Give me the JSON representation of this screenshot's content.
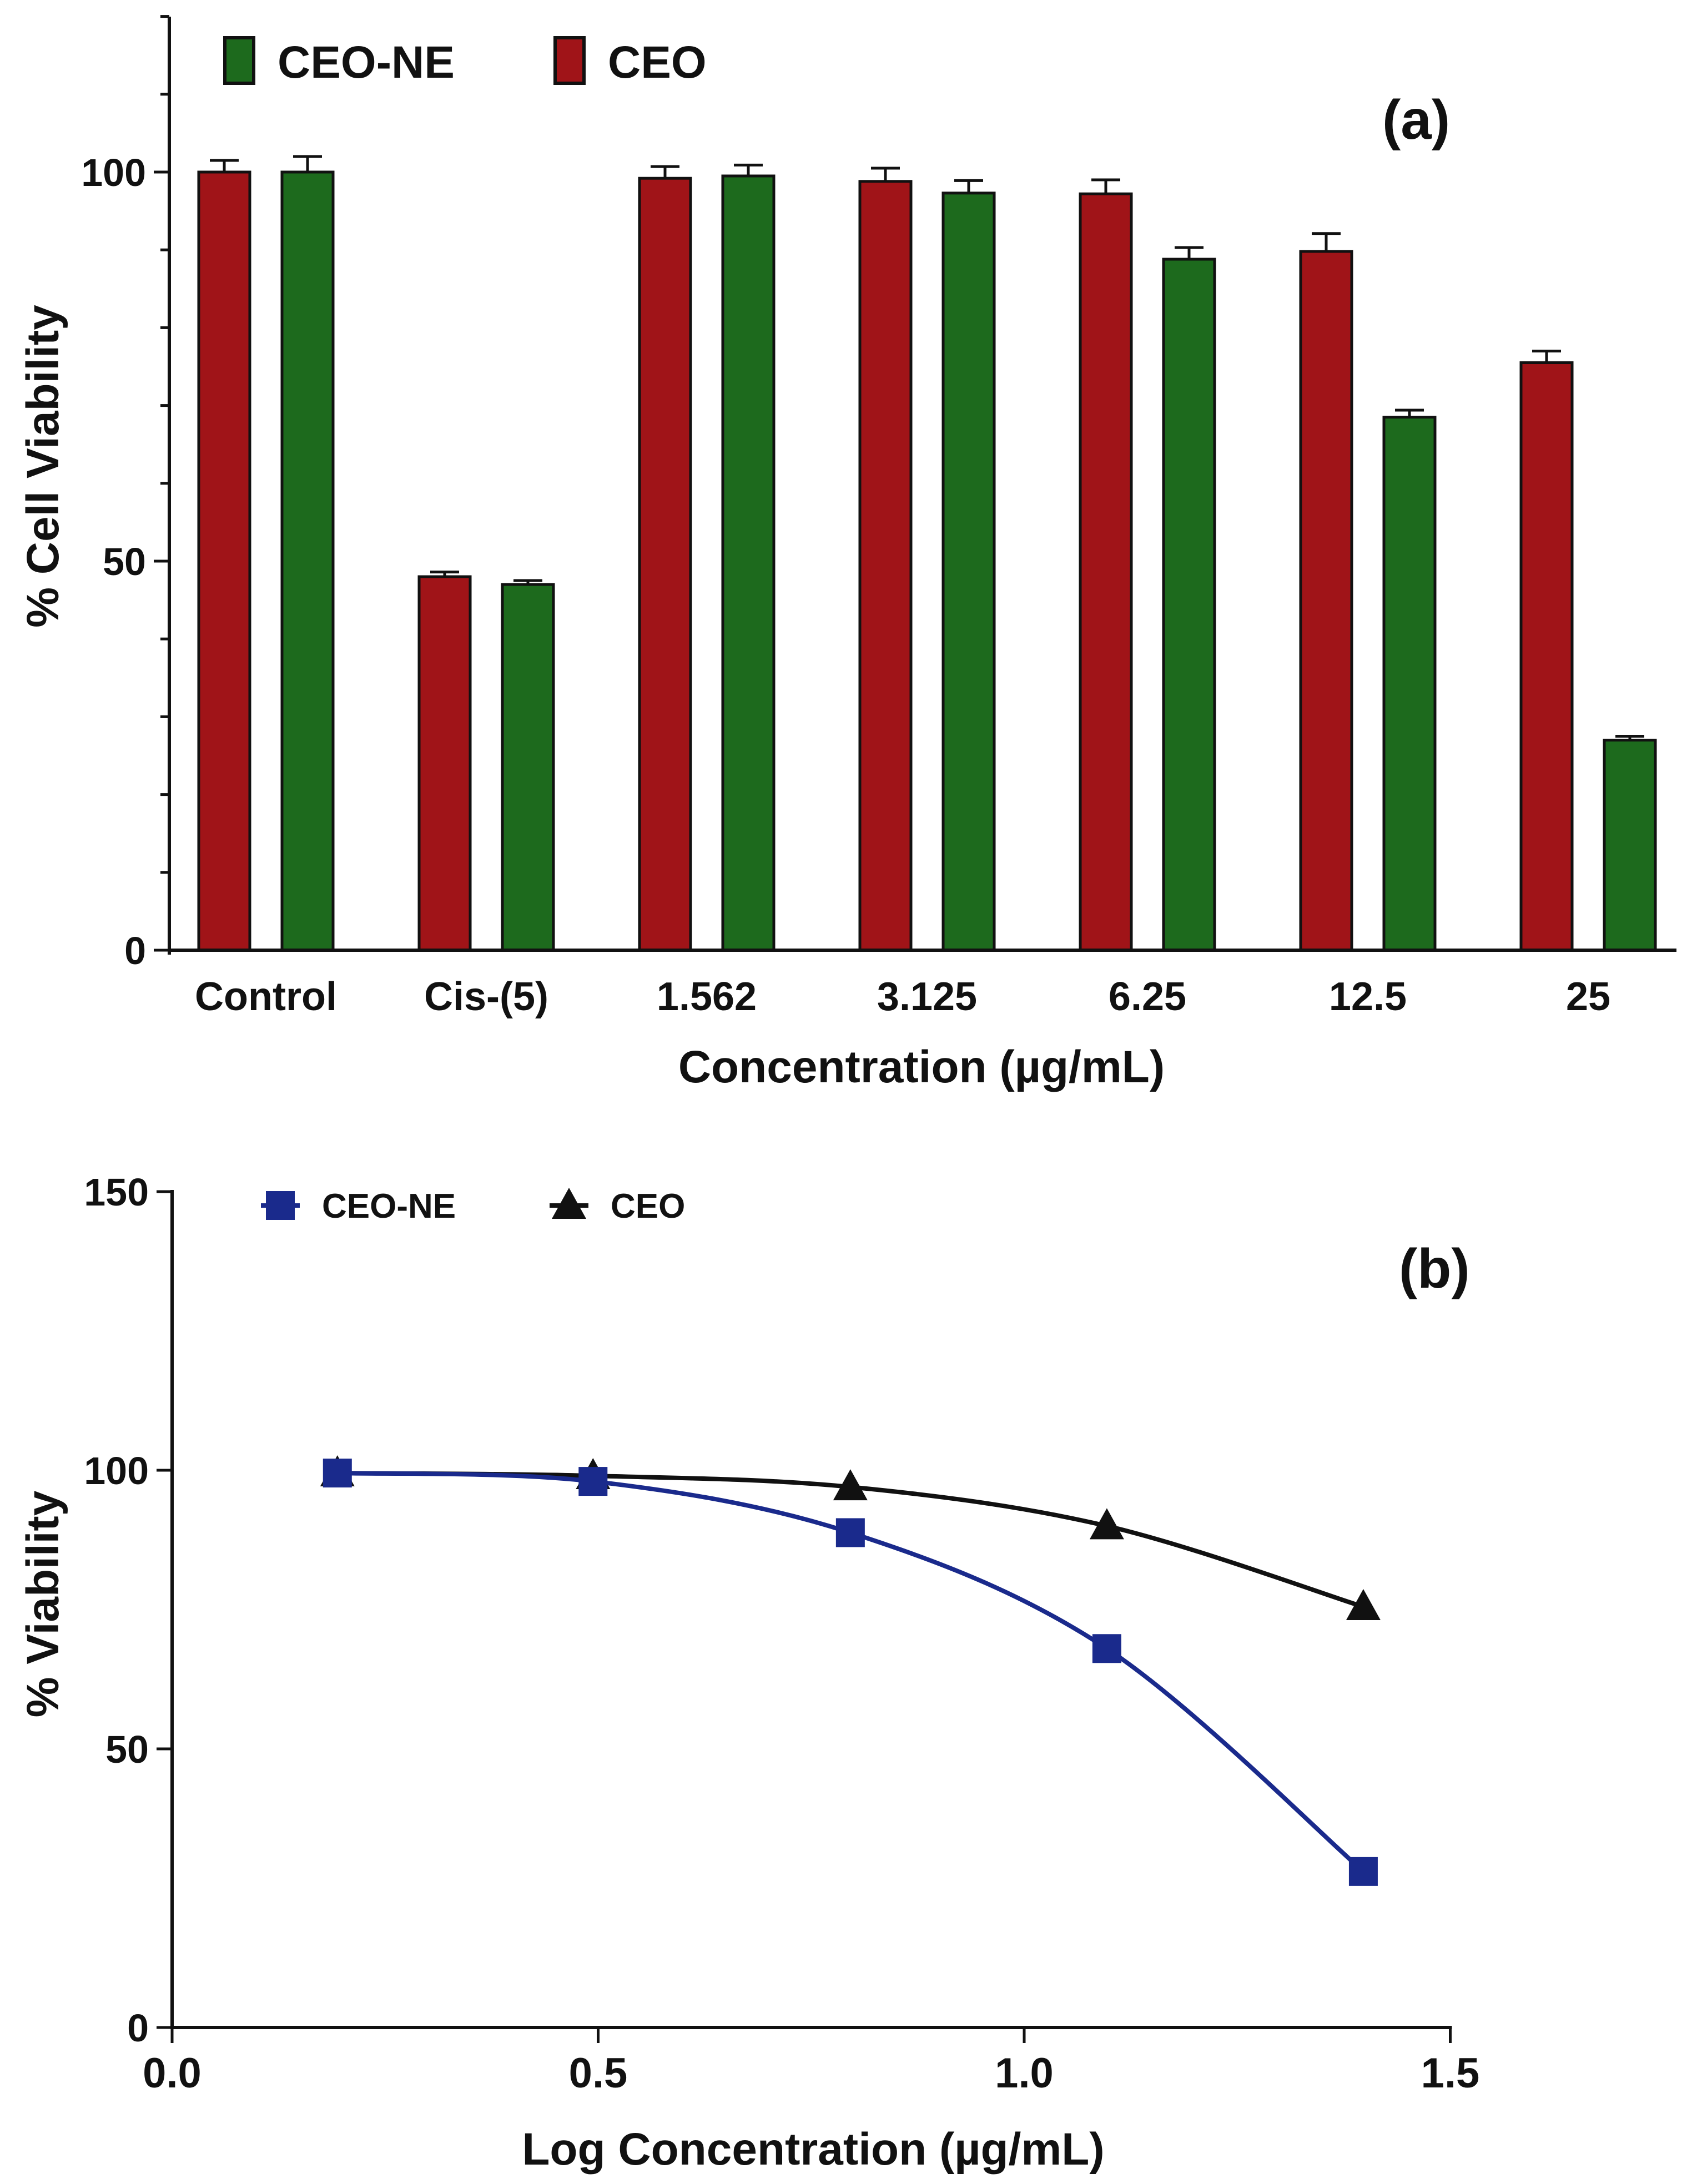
{
  "chart_data": [
    {
      "type": "bar",
      "panel_label": "(a)",
      "xlabel": "Concentration (µg/mL)",
      "ylabel": "% Cell Viability",
      "ylim": [
        0,
        120
      ],
      "yticks": [
        0,
        50,
        100
      ],
      "yticks_labeled": [
        "0",
        "50",
        "100"
      ],
      "grid": false,
      "legend_position": "top-left",
      "categories": [
        "Control",
        "Cis-(5)",
        "1.562",
        "3.125",
        "6.25",
        "12.5",
        "25"
      ],
      "series": [
        {
          "name": "CEO",
          "color": "#a01418",
          "values": [
            100,
            48,
            99.2,
            98.8,
            97.2,
            89.8,
            75.5
          ],
          "errors": [
            1.5,
            0.6,
            1.5,
            1.7,
            1.8,
            2.3,
            1.5
          ]
        },
        {
          "name": "CEO-NE",
          "color": "#1d6a1d",
          "values": [
            100,
            47,
            99.5,
            97.3,
            88.8,
            68.5,
            27
          ],
          "errors": [
            2.0,
            0.5,
            1.4,
            1.6,
            1.5,
            0.9,
            0.5
          ]
        }
      ],
      "legend_order": [
        "CEO-NE",
        "CEO"
      ]
    },
    {
      "type": "line",
      "panel_label": "(b)",
      "xlabel": "Log Concentration (µg/mL)",
      "ylabel": "% Viability",
      "xlim": [
        0,
        1.5
      ],
      "ylim": [
        0,
        150
      ],
      "xticks": [
        0.0,
        0.5,
        1.0,
        1.5
      ],
      "xtick_labels": [
        "0.0",
        "0.5",
        "1.0",
        "1.5"
      ],
      "yticks": [
        0,
        50,
        100,
        150
      ],
      "ytick_labels": [
        "0",
        "50",
        "100",
        "150"
      ],
      "grid": false,
      "legend_position": "top-left",
      "series": [
        {
          "name": "CEO-NE",
          "color": "#1a2a8c",
          "marker": "square",
          "x": [
            0.194,
            0.494,
            0.796,
            1.097,
            1.398
          ],
          "y": [
            99.5,
            98.0,
            88.8,
            68.0,
            28.0
          ]
        },
        {
          "name": "CEO",
          "color": "#111111",
          "marker": "triangle",
          "x": [
            0.194,
            0.494,
            0.796,
            1.097,
            1.398
          ],
          "y": [
            99.5,
            99.0,
            97.0,
            90.0,
            75.5
          ]
        }
      ]
    }
  ]
}
